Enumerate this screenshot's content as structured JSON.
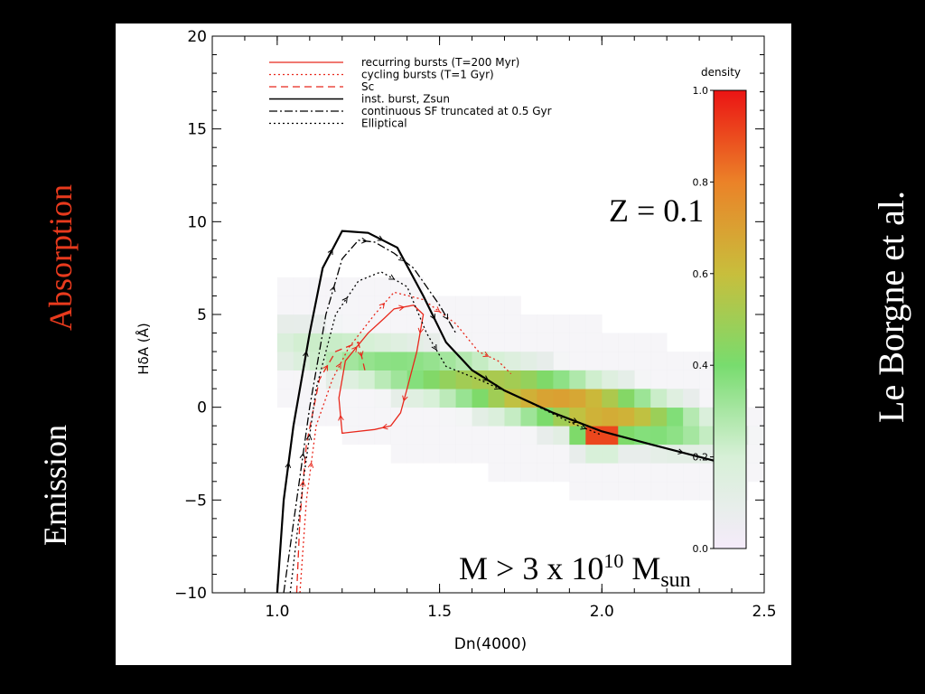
{
  "side_labels": {
    "emission": "Emission",
    "absorption": "Absorption",
    "author": "Le Borgne et al."
  },
  "annotations": {
    "metallicity": "Z = 0.1",
    "mass_prefix": "M > 3 x 10",
    "mass_exponent": "10",
    "mass_unit": " M",
    "mass_sub": "sun"
  },
  "colors": {
    "red": "#e8281c",
    "black": "#000000",
    "side_absorption": "#e83a1d"
  },
  "chart_data": {
    "type": "heatmap",
    "xlabel": "Dn(4000)",
    "ylabel": "HδA (Å)",
    "xlim": [
      0.8,
      2.5
    ],
    "ylim": [
      -10,
      20
    ],
    "xticks": [
      "1.0",
      "1.5",
      "2.0",
      "2.5"
    ],
    "yticks": [
      "−10",
      "−5",
      "0",
      "5",
      "10",
      "15",
      "20"
    ],
    "colorbar": {
      "label": "density",
      "range": [
        0.0,
        1.0
      ],
      "ticks": [
        "0.0",
        "0.2",
        "0.4",
        "0.6",
        "0.8",
        "1.0"
      ]
    },
    "density_peak": {
      "x": 2.0,
      "y": -1.5,
      "value": 1.0
    },
    "series": [
      {
        "name": "recurring bursts (T=200 Myr)",
        "style": "solid",
        "color": "#e8281c",
        "x": [
          1.33,
          1.36,
          1.42,
          1.45,
          1.43,
          1.4,
          1.38,
          1.35,
          1.3,
          1.2,
          1.19,
          1.21,
          1.28,
          1.33
        ],
        "y": [
          4.8,
          5.3,
          5.5,
          5.0,
          3.0,
          1.0,
          -0.3,
          -1.0,
          -1.2,
          -1.4,
          0.5,
          2.5,
          4.0,
          4.8
        ]
      },
      {
        "name": "cycling bursts (T=1 Gyr)",
        "style": "dotted",
        "color": "#e8281c",
        "x": [
          1.07,
          1.09,
          1.12,
          1.17,
          1.22,
          1.3,
          1.36,
          1.45,
          1.55,
          1.62,
          1.68,
          1.72
        ],
        "y": [
          -10,
          -5,
          -1,
          1.5,
          3.2,
          5.0,
          6.2,
          5.8,
          4.5,
          3.0,
          2.5,
          1.8
        ]
      },
      {
        "name": "Sc",
        "style": "dashed",
        "color": "#e8281c",
        "x": [
          1.06,
          1.07,
          1.09,
          1.13,
          1.18,
          1.25,
          1.27
        ],
        "y": [
          -10,
          -6,
          -2,
          1.5,
          3.0,
          3.5,
          2.0
        ]
      },
      {
        "name": "inst. burst, Zsun",
        "style": "solid",
        "color": "#000000",
        "x": [
          1.0,
          1.02,
          1.05,
          1.08,
          1.1,
          1.14,
          1.2,
          1.28,
          1.37,
          1.45,
          1.52,
          1.6,
          1.7,
          1.85,
          2.0,
          2.15,
          2.35
        ],
        "y": [
          -10,
          -5,
          -1,
          2,
          4,
          7.5,
          9.5,
          9.4,
          8.6,
          6.0,
          3.5,
          2.0,
          0.9,
          -0.3,
          -1.3,
          -2.0,
          -2.9
        ]
      },
      {
        "name": "continuous SF truncated at 0.5 Gyr",
        "style": "dashdot",
        "color": "#000000",
        "x": [
          1.02,
          1.06,
          1.1,
          1.15,
          1.2,
          1.25,
          1.3,
          1.36,
          1.42,
          1.5,
          1.55
        ],
        "y": [
          -10,
          -5,
          0,
          5,
          8,
          9.0,
          8.9,
          8.3,
          7.5,
          5.5,
          4.0
        ]
      },
      {
        "name": "Elliptical",
        "style": "dotted",
        "color": "#000000",
        "x": [
          1.04,
          1.08,
          1.12,
          1.18,
          1.25,
          1.32,
          1.4,
          1.46,
          1.52,
          1.62,
          1.75,
          1.9,
          2.0
        ],
        "y": [
          -10,
          -4,
          1,
          5,
          6.8,
          7.3,
          6.5,
          4.0,
          2.2,
          1.5,
          0.5,
          -0.8,
          -1.5
        ]
      }
    ]
  }
}
